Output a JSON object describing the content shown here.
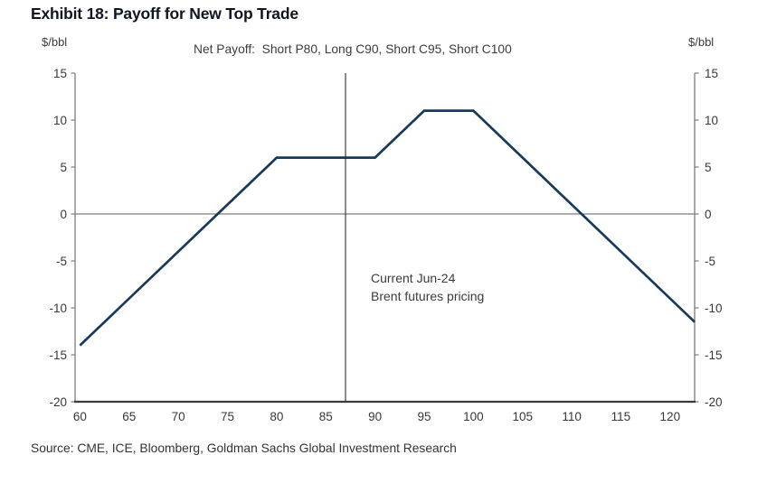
{
  "header": {
    "title": "Exhibit 18: Payoff for New Top Trade"
  },
  "subtitle": "Net Payoff:  Short P80, Long C90, Short C95, Short C100",
  "axis_units": {
    "left": "$/bbl",
    "right": "$/bbl"
  },
  "annotation": {
    "line1": "Current Jun-24",
    "line2": "Brent futures pricing"
  },
  "source": "Source: CME, ICE, Bloomberg, Goldman Sachs Global Investment Research",
  "colors": {
    "payoff_line": "#17395c",
    "axis_gray": "#7d7d7d",
    "bottom_axis": "#3a3a3a",
    "vline": "#4f4f4f",
    "tick_text": "#383838"
  },
  "chart_data": {
    "type": "line",
    "title": "Net Payoff:  Short P80, Long C90, Short C95, Short C100",
    "xlabel": "",
    "ylabel": "$/bbl",
    "xlim": [
      59.5,
      122.5
    ],
    "ylim": [
      -20,
      15
    ],
    "x_ticks": [
      60,
      65,
      70,
      75,
      80,
      85,
      90,
      95,
      100,
      105,
      110,
      115,
      120
    ],
    "y_ticks": [
      -20,
      -15,
      -10,
      -5,
      0,
      5,
      10,
      15
    ],
    "grid": false,
    "zero_line": true,
    "legend_position": "none",
    "series": [
      {
        "name": "Net payoff: Short P80, Long C90, Short C95, Short C100",
        "color": "#17395c",
        "points": [
          [
            60,
            -14
          ],
          [
            80,
            6
          ],
          [
            90,
            6
          ],
          [
            95,
            11
          ],
          [
            100,
            11
          ],
          [
            122.5,
            -11.5
          ]
        ]
      }
    ],
    "vline": {
      "x": 87,
      "label": "Current Jun-24 Brent futures pricing"
    }
  }
}
